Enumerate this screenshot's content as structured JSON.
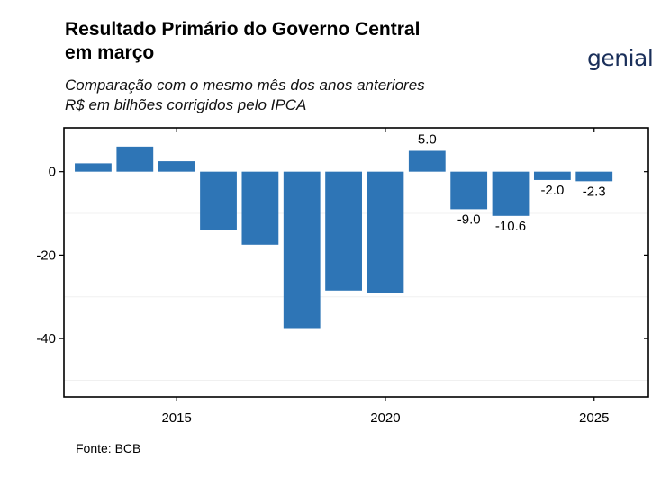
{
  "header": {
    "title_line1": "Resultado Primário do Governo Central",
    "title_line2": "em março",
    "subtitle_line1": "Comparação com o mesmo mês dos anos anteriores",
    "subtitle_line2": "R$ em bilhões corrigidos pelo IPCA",
    "logo_text": "genial"
  },
  "footer": {
    "source": "Fonte: BCB"
  },
  "colors": {
    "bar": "#2e75b6",
    "logo": "#1a2f5a",
    "logo_accent": "#3bb273"
  },
  "chart_data": {
    "type": "bar",
    "title": "Resultado Primário do Governo Central em março",
    "subtitle": "Comparação com o mesmo mês dos anos anteriores — R$ em bilhões corrigidos pelo IPCA",
    "x": [
      2013,
      2014,
      2015,
      2016,
      2017,
      2018,
      2019,
      2020,
      2021,
      2022,
      2023,
      2024,
      2025
    ],
    "values": [
      2.0,
      6.0,
      2.5,
      -14.0,
      -17.5,
      -37.5,
      -28.5,
      -29.0,
      5.0,
      -9.0,
      -10.6,
      -2.0,
      -2.3
    ],
    "data_labels": [
      null,
      null,
      null,
      null,
      null,
      null,
      null,
      null,
      "5.0",
      "-9.0",
      "-10.6",
      "-2.0",
      "-2.3"
    ],
    "xticks": [
      2015,
      2020,
      2025
    ],
    "yticks": [
      0,
      -20,
      -40
    ],
    "xlim": [
      2012.3,
      2026.3
    ],
    "ylim": [
      -54,
      10.5
    ],
    "xlabel": "",
    "ylabel": "",
    "grid": true
  }
}
